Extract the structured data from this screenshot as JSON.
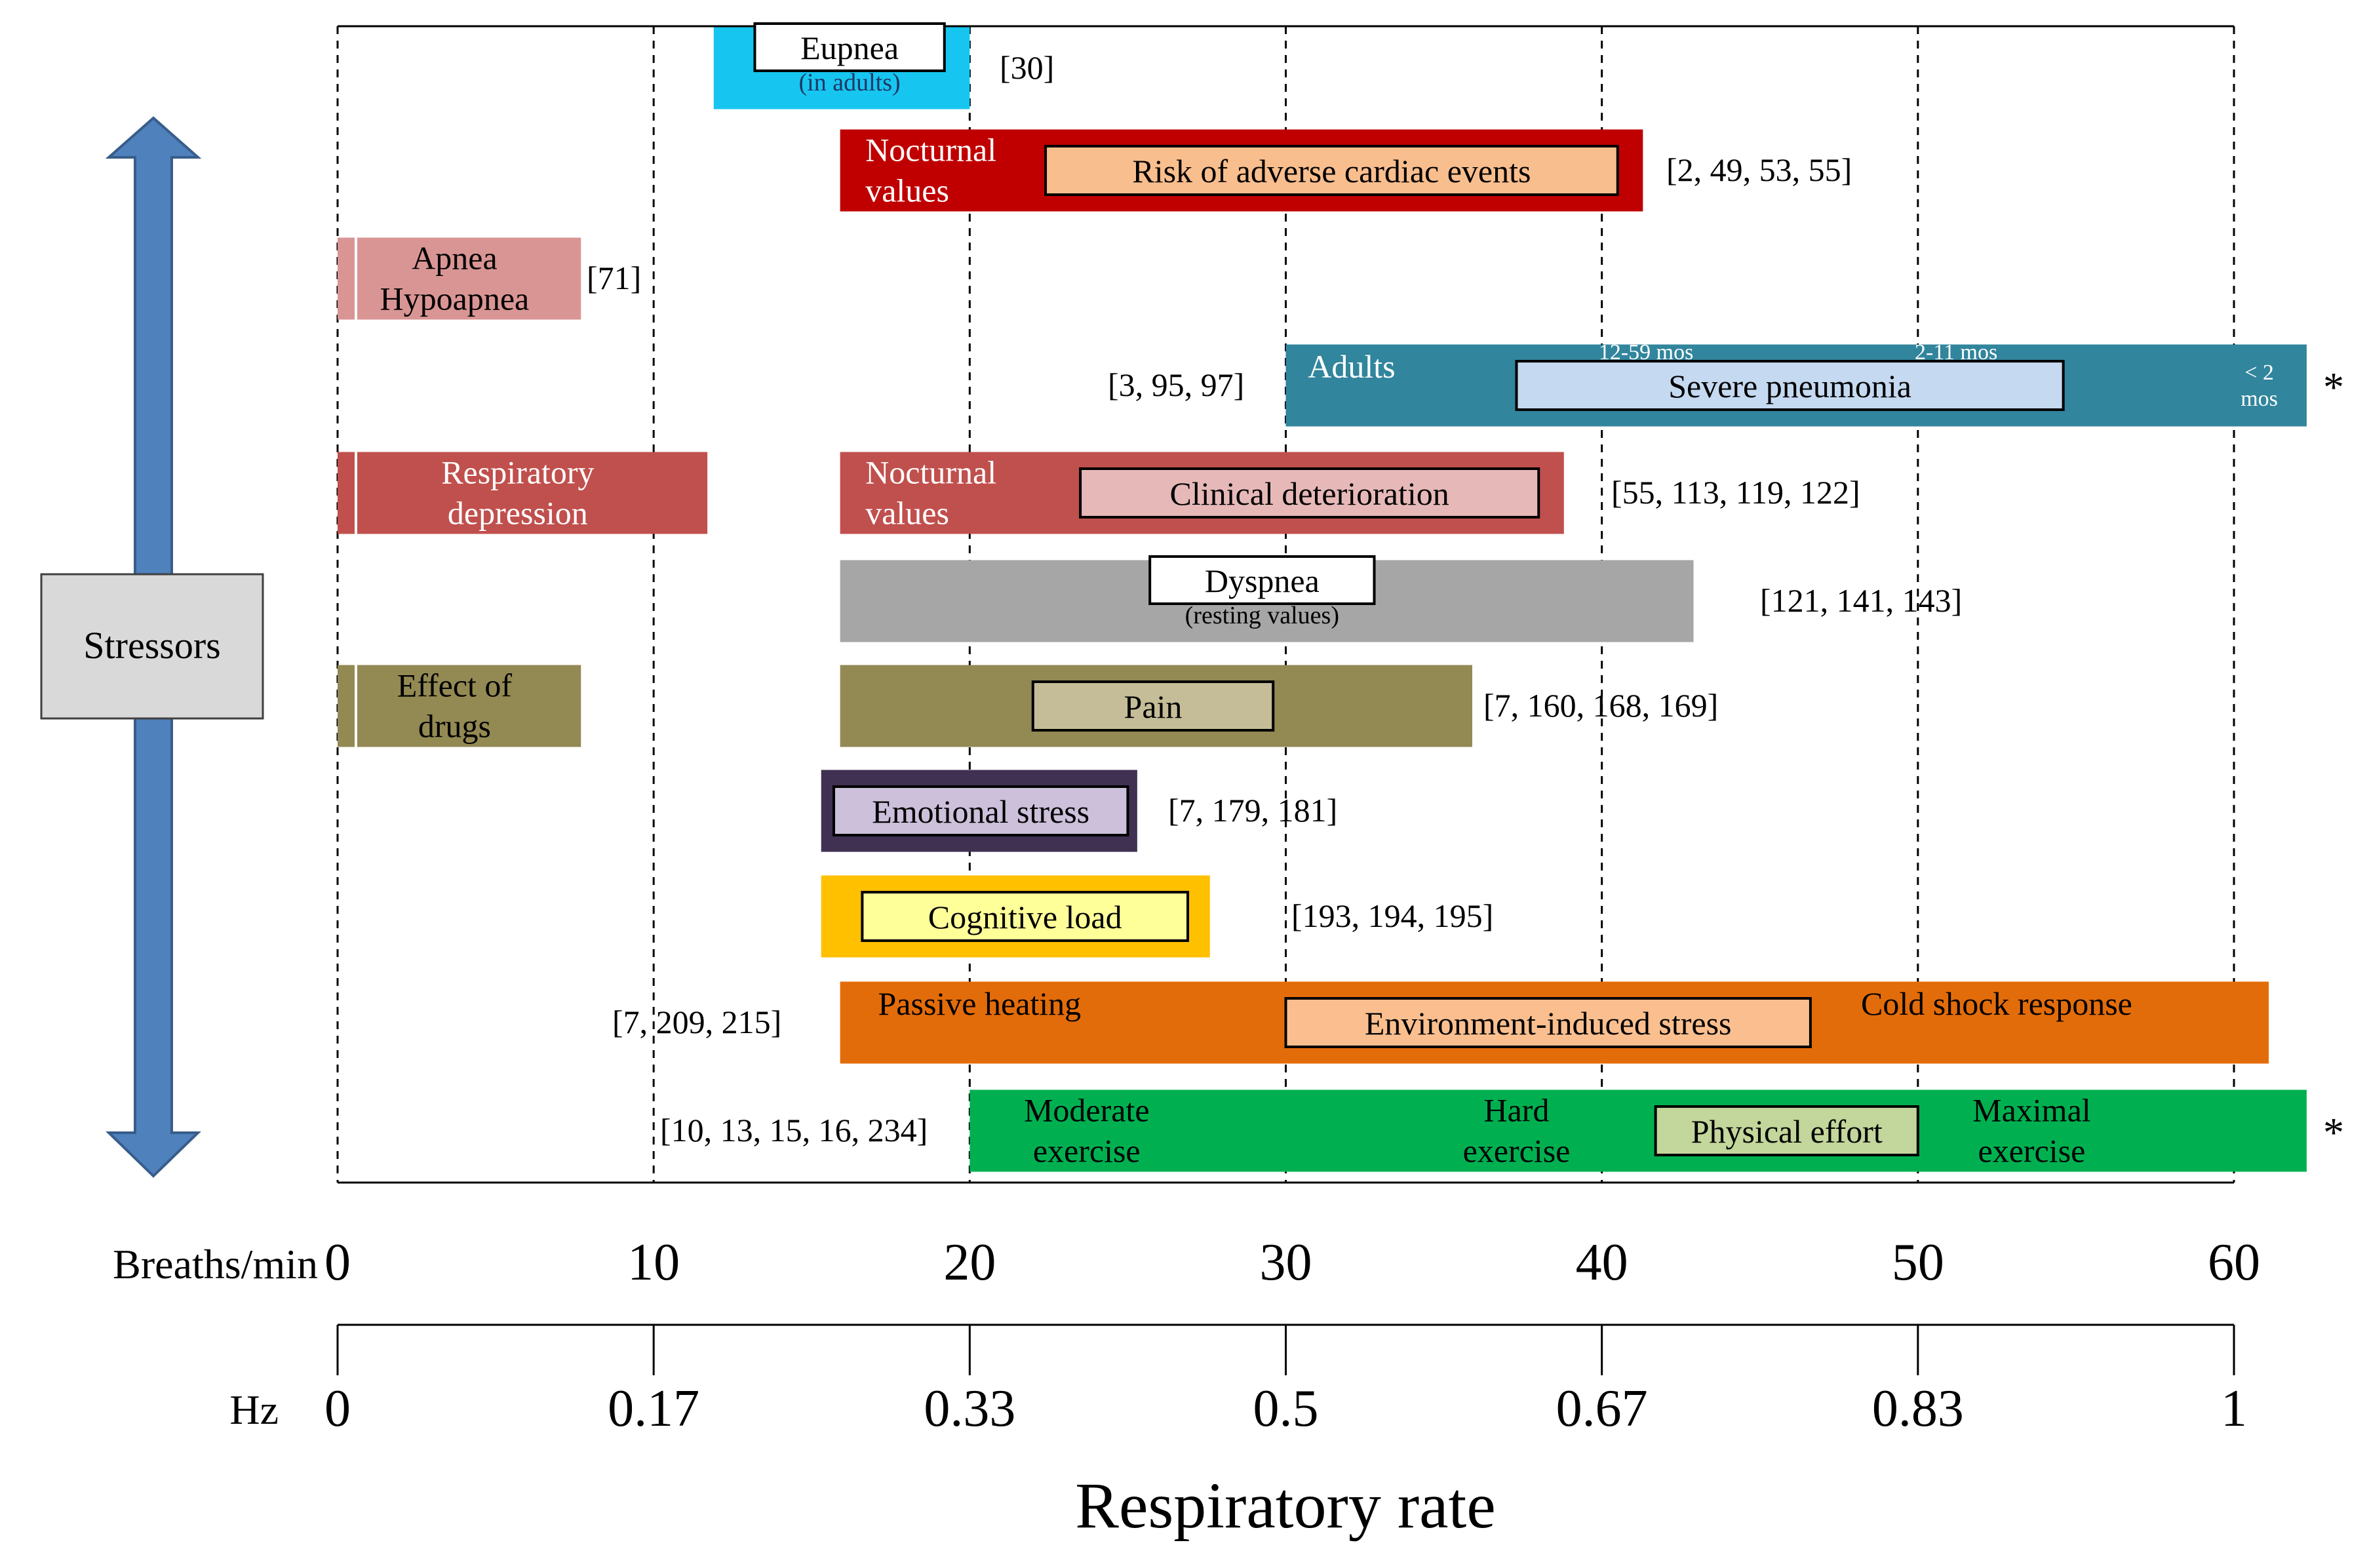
{
  "chart_data": {
    "type": "range-bar",
    "title": "",
    "xlabel": "Respiratory rate",
    "xlim": [
      0,
      60
    ],
    "x_ticks": [
      0,
      10,
      20,
      30,
      40,
      50,
      60
    ],
    "axis_breaths_label": "Breaths/min",
    "axis_breaths_ticks": [
      "0",
      "10",
      "20",
      "30",
      "40",
      "50",
      "60"
    ],
    "axis_hz_label": "Hz",
    "axis_hz_ticks": [
      "0",
      "0.17",
      "0.33",
      "0.5",
      "0.67",
      "0.83",
      "1"
    ],
    "gridlines": "dashed vertical at each tick",
    "side_arrow_label": "Stressors",
    "colors": {
      "eupnea": "#16c6f1",
      "cardiac": "#c00000",
      "cardiac_inner": "#f9be8e",
      "apnea": "#d99594",
      "pneumonia": "#31859c",
      "pneumonia_inner": "#c5d9f1",
      "resp": "#c0504d",
      "clinical_inner": "#e6b9b8",
      "dyspnea": "#a6a6a6",
      "drugs": "#938953",
      "pain_inner": "#c4bd97",
      "emotional": "#403152",
      "emotional_inner": "#ccc0da",
      "cognitive": "#ffc000",
      "cognitive_inner": "#ffff99",
      "heat": "#e36c0a",
      "heat_inner": "#fbbf8f",
      "exercise": "#00b050",
      "exercise_inner": "#c3d69b",
      "arrow": "#4f81bd",
      "stressors_box": "#d9d9d9"
    },
    "rows": [
      {
        "id": "eupnea",
        "ref": "[30]",
        "segments": [
          {
            "start": 11.9,
            "end": 20.0,
            "color_key": "eupnea"
          }
        ],
        "inner_box": {
          "start": 13.2,
          "end": 19.2,
          "label": "Eupnea",
          "sub": "(in adults)",
          "fill": "#ffffff"
        },
        "labels": []
      },
      {
        "id": "cardiac",
        "ref": "[2, 49, 53, 55]",
        "segments": [
          {
            "start": 15.9,
            "end": 41.3,
            "color_key": "cardiac"
          }
        ],
        "inner_box": {
          "start": 22.4,
          "end": 40.5,
          "label": "Risk of  adverse cardiac events",
          "fill_key": "cardiac_inner"
        },
        "labels": [
          {
            "text": "Nocturnal",
            "text2": "values",
            "x": 16.7,
            "color": "#ffffff"
          }
        ]
      },
      {
        "id": "apnea",
        "ref": "[71]",
        "segments": [
          {
            "start": 0.0,
            "end": 7.7,
            "color_key": "apnea"
          }
        ],
        "labels": [
          {
            "text": "Apnea",
            "text2": "Hypoapnea",
            "x": 3.7,
            "color": "#000000",
            "center": true
          }
        ]
      },
      {
        "id": "pneumonia",
        "ref": "[3, 95, 97]",
        "star": "*",
        "segments": [
          {
            "start": 30.0,
            "end": 62.3,
            "color_key": "pneumonia"
          }
        ],
        "inner_box": {
          "start": 37.3,
          "end": 54.6,
          "label": "Severe pneumonia",
          "fill_key": "pneumonia_inner"
        },
        "labels": [
          {
            "text": "Adults",
            "x": 30.7,
            "color": "#ffffff"
          },
          {
            "text": "12-59 mos",
            "x": 39.9,
            "color": "#ffffff",
            "small": true
          },
          {
            "text": "2-11 mos",
            "x": 49.9,
            "color": "#ffffff",
            "small": true
          },
          {
            "text": "< 2",
            "text2": "mos",
            "x": 60.8,
            "color": "#ffffff",
            "small": true,
            "center": true
          }
        ]
      },
      {
        "id": "clinical",
        "ref": "[55, 113, 119, 122]",
        "segments": [
          {
            "start": 0.0,
            "end": 11.7,
            "color_key": "resp"
          },
          {
            "start": 15.9,
            "end": 38.8,
            "color_key": "resp"
          }
        ],
        "inner_box": {
          "start": 23.5,
          "end": 38.0,
          "label": "Clinical deterioration",
          "fill_key": "clinical_inner"
        },
        "labels": [
          {
            "text": "Respiratory",
            "text2": "depression",
            "x": 5.7,
            "color": "#ffffff",
            "center": true
          },
          {
            "text": "Nocturnal",
            "text2": "values",
            "x": 16.7,
            "color": "#ffffff"
          }
        ]
      },
      {
        "id": "dyspnea",
        "ref": "[121, 141, 143]",
        "segments": [
          {
            "start": 15.9,
            "end": 42.9,
            "color_key": "dyspnea"
          }
        ],
        "inner_box": {
          "start": 25.7,
          "end": 32.8,
          "label": "Dyspnea",
          "sub": "(resting values)",
          "fill": "#ffffff"
        },
        "labels": []
      },
      {
        "id": "pain",
        "ref": "[7, 160, 168, 169]",
        "segments": [
          {
            "start": 0.0,
            "end": 7.7,
            "color_key": "drugs"
          },
          {
            "start": 15.9,
            "end": 35.9,
            "color_key": "drugs"
          }
        ],
        "inner_box": {
          "start": 22.0,
          "end": 29.6,
          "label": "Pain",
          "fill_key": "pain_inner"
        },
        "labels": [
          {
            "text": "Effect of",
            "text2": "drugs",
            "x": 3.7,
            "color": "#000000",
            "center": true
          }
        ]
      },
      {
        "id": "emotional",
        "ref": "[7, 179, 181]",
        "segments": [
          {
            "start": 15.3,
            "end": 25.3,
            "color_key": "emotional"
          }
        ],
        "inner_box": {
          "start": 15.7,
          "end": 25.0,
          "label": "Emotional stress",
          "fill_key": "emotional_inner"
        },
        "labels": []
      },
      {
        "id": "cognitive",
        "ref": "[193, 194, 195]",
        "segments": [
          {
            "start": 15.3,
            "end": 27.6,
            "color_key": "cognitive"
          }
        ],
        "inner_box": {
          "start": 16.6,
          "end": 26.9,
          "label": "Cognitive load",
          "fill_key": "cognitive_inner"
        },
        "labels": []
      },
      {
        "id": "heat",
        "ref": "[7, 209, 215]",
        "segments": [
          {
            "start": 15.9,
            "end": 61.1,
            "color_key": "heat"
          }
        ],
        "inner_box": {
          "start": 30.0,
          "end": 46.6,
          "label": "Environment-induced  stress",
          "fill_key": "heat_inner"
        },
        "labels": [
          {
            "text": "Passive heating",
            "x": 17.1,
            "color": "#000000"
          },
          {
            "text": "Cold shock response",
            "x": 48.2,
            "color": "#000000"
          }
        ]
      },
      {
        "id": "exercise",
        "ref": "[10, 13, 15, 16, 234]",
        "star": "*",
        "segments": [
          {
            "start": 20.0,
            "end": 62.3,
            "color_key": "exercise"
          }
        ],
        "inner_box": {
          "start": 41.7,
          "end": 50.0,
          "label": "Physical effort",
          "fill_key": "exercise_inner"
        },
        "labels": [
          {
            "text": "Moderate",
            "text2": "exercise",
            "x": 23.7,
            "color": "#000000",
            "center": true
          },
          {
            "text": "Hard",
            "text2": "exercise",
            "x": 37.3,
            "color": "#000000",
            "center": true
          },
          {
            "text": "Maximal",
            "text2": "exercise",
            "x": 53.6,
            "color": "#000000",
            "center": true
          }
        ]
      }
    ]
  }
}
